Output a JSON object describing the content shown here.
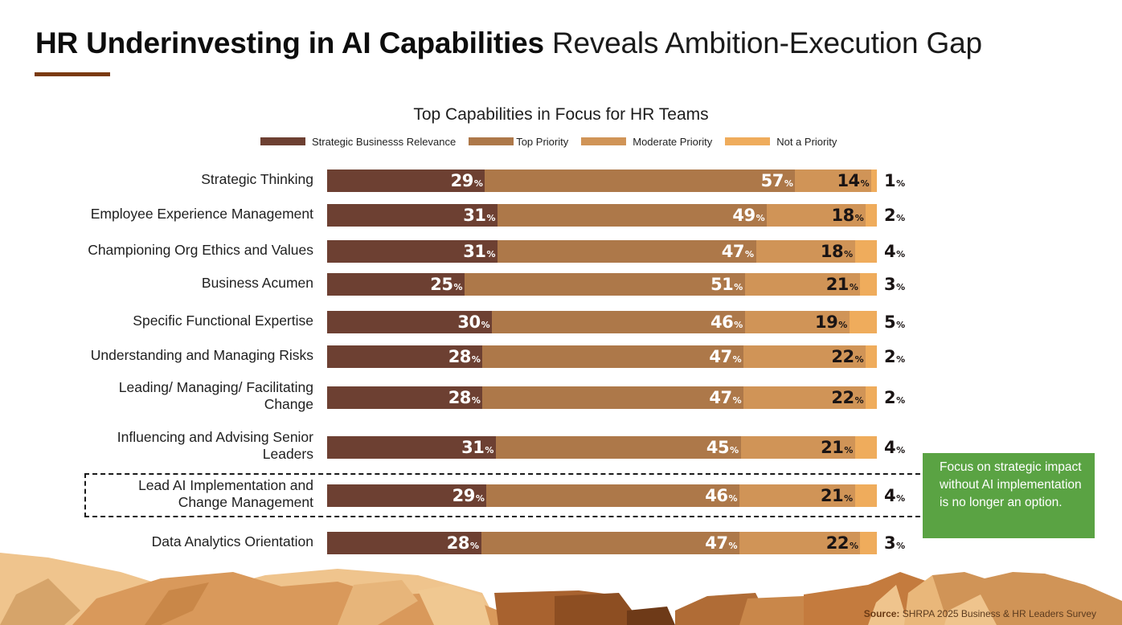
{
  "header": {
    "title_bold": "HR Underinvesting in AI Capabilities",
    "title_light": "Reveals Ambition-Execution Gap"
  },
  "colors": {
    "strategic": "#6d4032",
    "top": "#ad7849",
    "moderate": "#d09457",
    "not": "#efac5c",
    "accent_rule": "#7a3a10",
    "callout_bg": "#5aa343"
  },
  "chart_data": {
    "type": "bar",
    "orientation": "horizontal",
    "stacked": true,
    "title": "Top Capabilities in Focus for HR Teams",
    "legend_position": "top",
    "value_suffix": "%",
    "categories": [
      "Strategic Thinking",
      "Employee Experience Management",
      "Championing Org Ethics and Values",
      "Business Acumen",
      "Specific Functional Expertise",
      "Understanding and Managing Risks",
      "Leading/ Managing/ Facilitating\nChange",
      "Influencing and Advising Senior\nLeaders",
      "Lead AI Implementation and\nChange Management",
      "Data Analytics Orientation"
    ],
    "series": [
      {
        "name": "Strategic Businesss Relevance",
        "values": [
          29,
          31,
          31,
          25,
          30,
          28,
          28,
          31,
          29,
          28
        ]
      },
      {
        "name": "Top Priority",
        "values": [
          57,
          49,
          47,
          51,
          46,
          47,
          47,
          45,
          46,
          47
        ]
      },
      {
        "name": "Moderate Priority",
        "values": [
          14,
          18,
          18,
          21,
          19,
          22,
          22,
          21,
          21,
          22
        ]
      },
      {
        "name": "Not a Priority",
        "values": [
          1,
          2,
          4,
          3,
          5,
          2,
          2,
          4,
          4,
          3
        ]
      }
    ],
    "highlighted_category": "Lead AI Implementation and\nChange Management",
    "xlabel": "",
    "ylabel": "",
    "grid": false
  },
  "callout": {
    "text": "Focus on strategic impact without AI implementation is no longer an option."
  },
  "footer": {
    "source_label": "Source:",
    "source_text": "SHRPA 2025 Business & HR Leaders Survey"
  }
}
